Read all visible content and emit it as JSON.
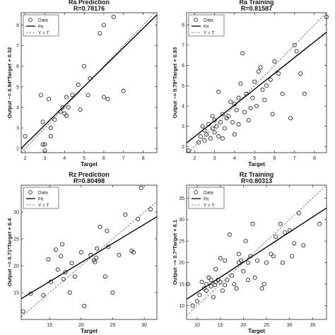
{
  "chart_data": [
    {
      "type": "scatter",
      "title": "Ra Prediction",
      "subtitle": "R=0.78176",
      "xlabel": "Target",
      "ylabel": "Output ~= 0.94*Target + 0.32",
      "xlim": [
        1.8,
        8.7
      ],
      "ylim": [
        1.8,
        8.6
      ],
      "xticks": [
        2,
        3,
        4,
        5,
        6,
        7,
        8
      ],
      "yticks": [
        2,
        3,
        4,
        5,
        6,
        7,
        8
      ],
      "grid": false,
      "legend": {
        "position": "top-left",
        "entries": [
          "Data",
          "Fit",
          "Y = T"
        ]
      },
      "fit": {
        "slope": 0.94,
        "intercept": 0.32
      },
      "series": [
        {
          "name": "Data",
          "x": [
            2.0,
            2.8,
            2.9,
            2.9,
            3.0,
            3.0,
            3.2,
            3.3,
            3.3,
            3.5,
            3.8,
            3.9,
            4.0,
            4.1,
            4.1,
            4.2,
            4.4,
            4.7,
            4.8,
            5.0,
            5.2,
            5.3,
            5.8,
            6.0,
            6.0,
            6.2,
            6.5,
            7.0
          ],
          "y": [
            2.6,
            4.6,
            3.3,
            2.2,
            1.9,
            2.2,
            4.4,
            3.0,
            2.6,
            3.4,
            3.8,
            4.0,
            3.7,
            3.6,
            4.5,
            4.0,
            4.6,
            5.1,
            3.9,
            6.0,
            4.6,
            5.4,
            7.6,
            4.5,
            8.0,
            4.4,
            8.4,
            4.8
          ]
        }
      ]
    },
    {
      "type": "scatter",
      "title": "Ra Training",
      "subtitle": "R=0.81587",
      "xlabel": "Target",
      "ylabel": "Output ~= 0.78*Target + 0.93",
      "xlim": [
        1.6,
        8.6
      ],
      "ylim": [
        1.7,
        8.6
      ],
      "xticks": [
        2,
        3,
        4,
        5,
        6,
        7,
        8
      ],
      "yticks": [
        2,
        3,
        4,
        5,
        6,
        7,
        8
      ],
      "grid": false,
      "legend": {
        "position": "top-left",
        "entries": [
          "Data",
          "Fit",
          "Y = T"
        ]
      },
      "fit": {
        "slope": 0.78,
        "intercept": 0.93
      },
      "series": [
        {
          "name": "Data",
          "x": [
            1.7,
            2.2,
            2.3,
            2.4,
            2.5,
            2.5,
            2.6,
            2.7,
            2.8,
            2.9,
            2.9,
            3.0,
            3.0,
            3.1,
            3.2,
            3.2,
            3.3,
            3.4,
            3.4,
            3.5,
            3.6,
            3.7,
            3.8,
            3.9,
            4.0,
            4.0,
            4.1,
            4.2,
            4.2,
            4.3,
            4.4,
            4.5,
            4.6,
            4.7,
            4.8,
            4.9,
            5.0,
            5.1,
            5.2,
            5.3,
            5.4,
            5.5,
            5.6,
            5.8,
            5.9,
            6.0,
            6.2,
            6.4,
            6.8,
            7.0,
            7.1,
            7.3,
            7.5,
            8.6
          ],
          "y": [
            1.8,
            2.2,
            2.5,
            3.0,
            2.3,
            2.8,
            2.6,
            3.1,
            2.4,
            3.5,
            2.9,
            2.7,
            3.3,
            3.0,
            4.7,
            2.5,
            3.2,
            3.6,
            2.4,
            2.9,
            3.4,
            3.5,
            4.2,
            3.2,
            4.1,
            2.6,
            3.8,
            4.4,
            3.1,
            5.1,
            6.6,
            3.7,
            4.6,
            3.3,
            3.9,
            4.4,
            5.2,
            4.0,
            5.7,
            5.9,
            4.8,
            4.3,
            5.0,
            5.3,
            3.6,
            6.2,
            5.6,
            4.6,
            3.4,
            7.0,
            6.7,
            5.6,
            4.6,
            8.4
          ]
        }
      ]
    },
    {
      "type": "scatter",
      "title": "Rz Prediction",
      "subtitle": "R=0.80498",
      "xlabel": "Target",
      "ylabel": "Output ~= 0.71*Target + 6.4",
      "xlim": [
        10.5,
        32
      ],
      "ylim": [
        10,
        35
      ],
      "xticks": [
        15,
        20,
        25,
        30
      ],
      "yticks": [
        15,
        20,
        25,
        30
      ],
      "grid": false,
      "legend": {
        "position": "top-left",
        "entries": [
          "Data",
          "Fit",
          "Y = T"
        ]
      },
      "fit": {
        "slope": 0.71,
        "intercept": 6.4
      },
      "series": [
        {
          "name": "Data",
          "x": [
            10.8,
            12.0,
            14.0,
            14.8,
            15.2,
            16.0,
            16.3,
            16.8,
            17.0,
            17.2,
            17.5,
            18.2,
            18.5,
            19.0,
            20.0,
            20.5,
            21.5,
            22.0,
            22.2,
            22.4,
            22.5,
            23.0,
            23.8,
            24.1,
            24.3,
            25.0,
            26.0,
            27.0,
            28.0,
            28.3,
            29.0,
            29.5,
            31.0
          ],
          "y": [
            11.5,
            14.8,
            14.5,
            21.2,
            17.0,
            23.0,
            19.3,
            21.8,
            24.0,
            17.5,
            18.8,
            15.0,
            20.5,
            18.0,
            22.5,
            12.5,
            22.0,
            21.0,
            20.7,
            21.5,
            23.2,
            27.2,
            18.0,
            26.5,
            23.5,
            15.0,
            22.0,
            29.5,
            22.8,
            22.5,
            28.7,
            34.5,
            30.5
          ]
        }
      ]
    },
    {
      "type": "scatter",
      "title": "Rz Training",
      "subtitle": "R=0.80313",
      "xlabel": "Target",
      "ylabel": "Output ~= 0.7*Target + 6.1",
      "xlim": [
        7.7,
        38
      ],
      "ylim": [
        6.8,
        38
      ],
      "xticks": [
        10,
        15,
        20,
        25,
        30,
        35
      ],
      "yticks": [
        10,
        15,
        20,
        25,
        30,
        35
      ],
      "grid": false,
      "legend": {
        "position": "top-left",
        "entries": [
          "Data",
          "Fit",
          "Y = T"
        ]
      },
      "fit": {
        "slope": 0.7,
        "intercept": 6.1
      },
      "series": [
        {
          "name": "Data",
          "x": [
            8.0,
            9.0,
            10.0,
            10.5,
            11.0,
            11.5,
            12.0,
            12.0,
            12.5,
            13.0,
            13.0,
            13.5,
            13.8,
            14.0,
            14.0,
            14.5,
            15.0,
            15.0,
            15.5,
            16.0,
            16.0,
            16.5,
            17.0,
            17.5,
            18.0,
            18.5,
            19.0,
            19.0,
            19.5,
            20.0,
            20.5,
            21.0,
            21.0,
            21.5,
            22.0,
            22.5,
            23.0,
            24.0,
            24.5,
            25.0,
            26.0,
            26.5,
            27.0,
            28.0,
            28.5,
            29.0,
            30.0,
            30.5,
            31.0,
            32.0,
            33.0,
            36.5
          ],
          "y": [
            15.0,
            10.0,
            11.0,
            12.5,
            15.5,
            14.0,
            13.5,
            15.0,
            16.5,
            14.5,
            16.0,
            12.0,
            14.8,
            15.5,
            18.5,
            16.0,
            15.5,
            21.0,
            13.5,
            14.8,
            20.5,
            16.0,
            26.5,
            17.0,
            15.0,
            14.0,
            20.0,
            22.0,
            20.5,
            18.0,
            25.0,
            16.0,
            20.0,
            21.5,
            29.0,
            16.5,
            20.5,
            14.0,
            15.0,
            20.0,
            22.0,
            21.5,
            26.0,
            29.0,
            20.0,
            27.0,
            27.5,
            21.5,
            24.5,
            31.5,
            24.0,
            29.0
          ]
        }
      ]
    }
  ]
}
